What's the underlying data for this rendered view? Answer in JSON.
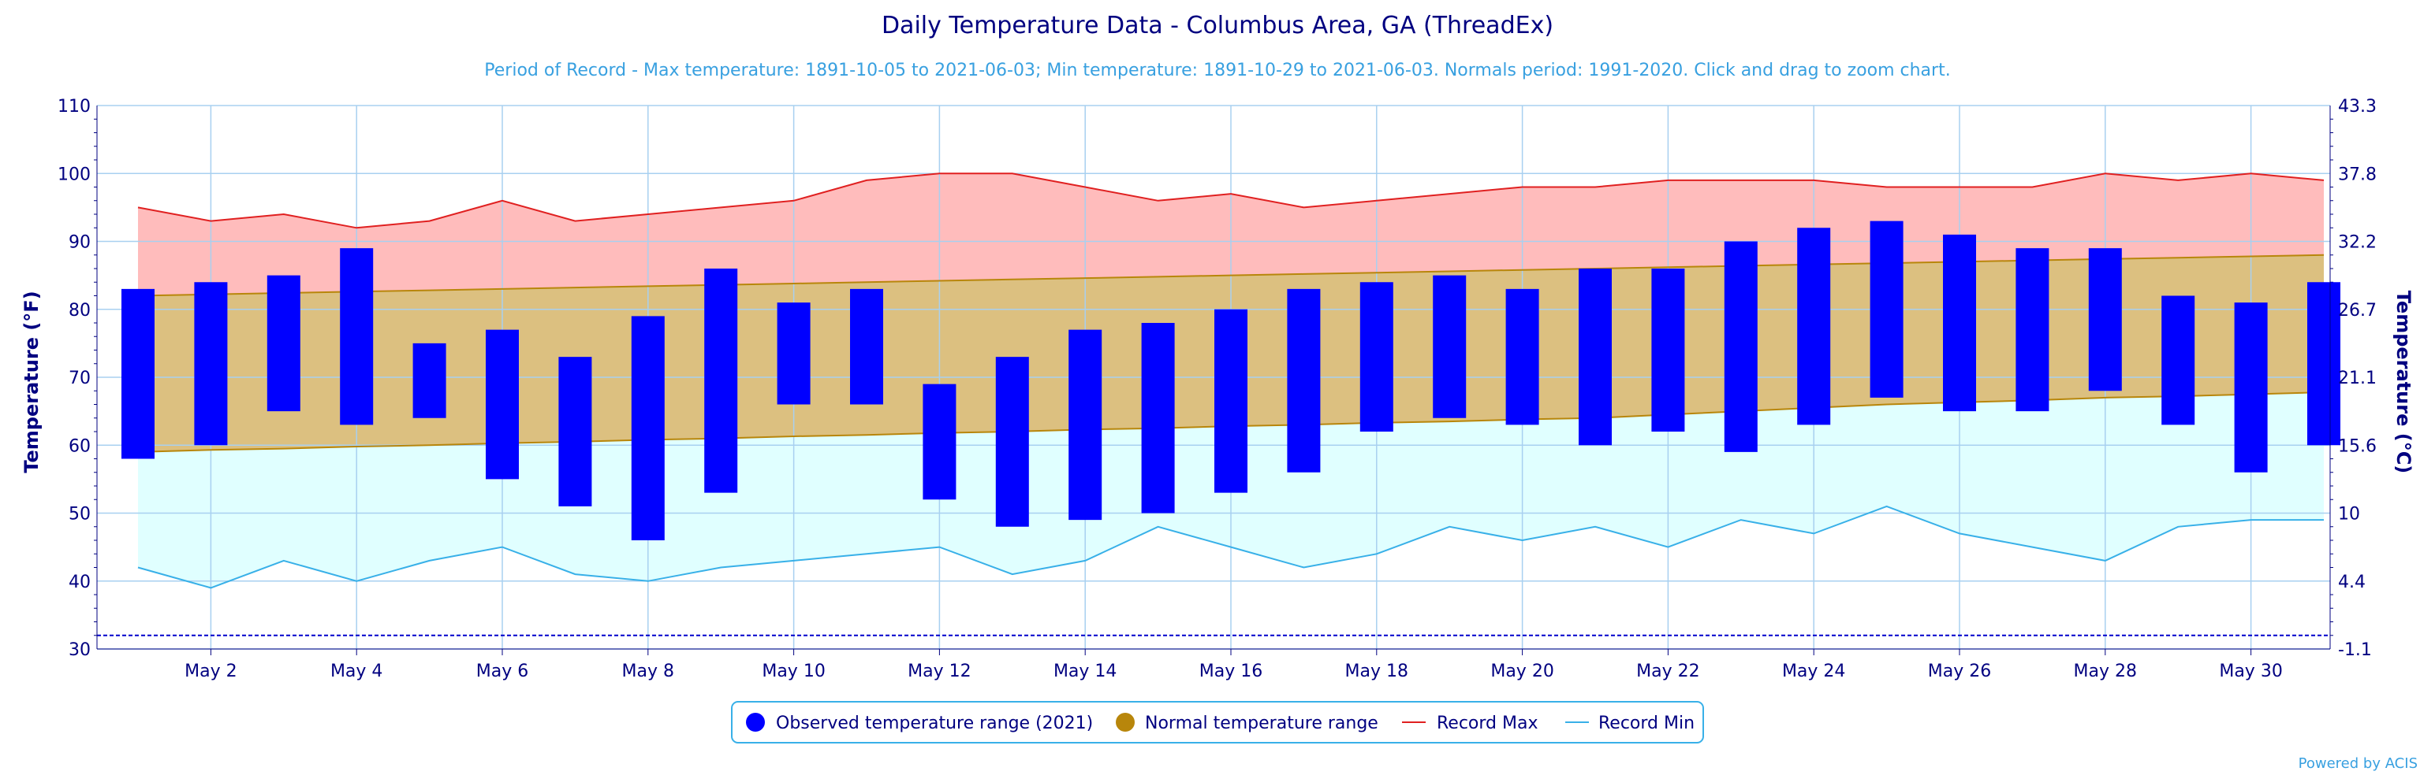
{
  "colors": {
    "observed": "#0000ff",
    "normal_fill": "#dcc080",
    "normal_line": "#b8860b",
    "record_max_fill": "#ffbcbc",
    "record_max_line": "#e02020",
    "record_min_fill": "#e0ffff",
    "record_min_line": "#38b0e8",
    "title": "#000080",
    "subtitle": "#38a0e0",
    "axis_text": "#000080",
    "grid": "#a8d0f0",
    "freeze_line": "#0000cc"
  },
  "chart_data": {
    "type": "bar",
    "title": "Daily Temperature Data - Columbus Area, GA (ThreadEx)",
    "subtitle": "Period of Record - Max temperature: 1891-10-05 to 2021-06-03; Min temperature: 1891-10-29 to 2021-06-03. Normals period: 1991-2020. Click and drag to zoom chart.",
    "ylabel": "Temperature (°F)",
    "ylabel_right": "Temperature (°C)",
    "ylim": [
      30,
      110
    ],
    "yticks": [
      30,
      40,
      50,
      60,
      70,
      80,
      90,
      100,
      110
    ],
    "yticks_right": [
      "-1.1",
      "4.4",
      "10",
      "15.6",
      "21.1",
      "26.7",
      "32.2",
      "37.8",
      "43.3"
    ],
    "x_days": [
      1,
      2,
      3,
      4,
      5,
      6,
      7,
      8,
      9,
      10,
      11,
      12,
      13,
      14,
      15,
      16,
      17,
      18,
      19,
      20,
      21,
      22,
      23,
      24,
      25,
      26,
      27,
      28,
      29,
      30,
      31
    ],
    "x_tick_labels": [
      "May 2",
      "May 4",
      "May 6",
      "May 8",
      "May 10",
      "May 12",
      "May 14",
      "May 16",
      "May 18",
      "May 20",
      "May 22",
      "May 24",
      "May 26",
      "May 28",
      "May 30"
    ],
    "x_tick_days": [
      2,
      4,
      6,
      8,
      10,
      12,
      14,
      16,
      18,
      20,
      22,
      24,
      26,
      28,
      30
    ],
    "observed_max": [
      83,
      84,
      85,
      89,
      75,
      77,
      73,
      79,
      86,
      81,
      83,
      69,
      73,
      77,
      78,
      80,
      83,
      84,
      85,
      83,
      86,
      86,
      90,
      92,
      93,
      91,
      89,
      89,
      82,
      81,
      84
    ],
    "observed_min": [
      58,
      60,
      65,
      63,
      64,
      55,
      51,
      46,
      53,
      66,
      66,
      52,
      48,
      49,
      50,
      53,
      56,
      62,
      64,
      63,
      60,
      62,
      59,
      63,
      67,
      65,
      65,
      68,
      63,
      56,
      60
    ],
    "normal_max": [
      82,
      82.2,
      82.4,
      82.6,
      82.8,
      83,
      83.2,
      83.4,
      83.6,
      83.8,
      84,
      84.2,
      84.4,
      84.6,
      84.8,
      85,
      85.2,
      85.4,
      85.6,
      85.8,
      86,
      86.2,
      86.4,
      86.6,
      86.8,
      87,
      87.2,
      87.4,
      87.6,
      87.8,
      88
    ],
    "normal_min": [
      59,
      59.3,
      59.5,
      59.8,
      60,
      60.3,
      60.5,
      60.8,
      61,
      61.3,
      61.5,
      61.8,
      62,
      62.3,
      62.5,
      62.8,
      63,
      63.3,
      63.5,
      63.8,
      64,
      64.5,
      65,
      65.5,
      66,
      66.3,
      66.6,
      67,
      67.2,
      67.5,
      67.8
    ],
    "record_max": [
      95,
      93,
      94,
      92,
      93,
      96,
      93,
      94,
      95,
      96,
      99,
      100,
      100,
      98,
      96,
      97,
      95,
      96,
      97,
      98,
      98,
      99,
      99,
      99,
      98,
      98,
      98,
      100,
      99,
      100,
      99
    ],
    "record_min": [
      42,
      39,
      43,
      40,
      43,
      45,
      41,
      40,
      42,
      43,
      44,
      45,
      41,
      43,
      48,
      45,
      42,
      44,
      48,
      46,
      48,
      45,
      49,
      47,
      51,
      47,
      45,
      43,
      48,
      49,
      49
    ],
    "freeze_line_value": 32,
    "legend": [
      {
        "label": "Observed temperature range (2021)",
        "marker": "circle",
        "color": "#0000ff"
      },
      {
        "label": "Normal temperature range",
        "marker": "circle",
        "color": "#b8860b"
      },
      {
        "label": "Record Max",
        "marker": "line",
        "color": "#e02020"
      },
      {
        "label": "Record Min",
        "marker": "line",
        "color": "#38b0e8"
      }
    ],
    "credit": "Powered by ACIS"
  }
}
